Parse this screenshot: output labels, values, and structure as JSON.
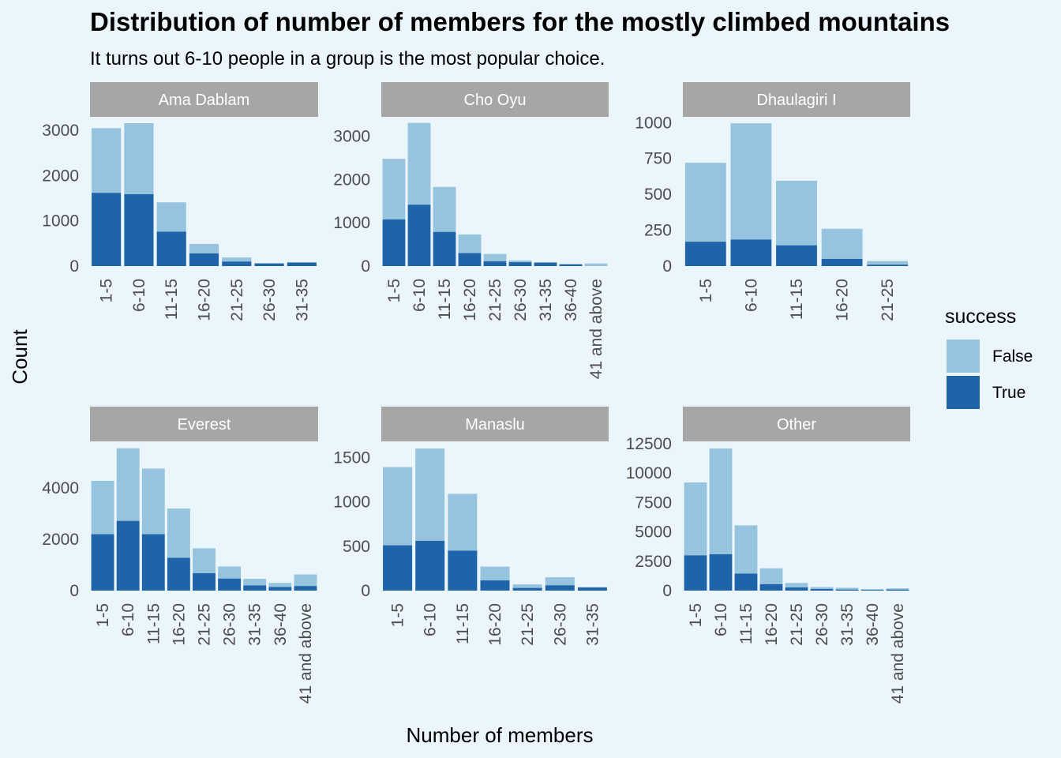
{
  "chart_data": {
    "type": "bar",
    "stacked": true,
    "title": "Distribution of number of members for the mostly climbed mountains",
    "subtitle": "It turns out 6-10 people in a group is the most popular choice.",
    "xlabel": "Number of members",
    "ylabel": "Count",
    "grid": false,
    "legend": {
      "title": "success",
      "placement": "right",
      "entries": [
        {
          "label": "False",
          "color": "#96c3dd"
        },
        {
          "label": "True",
          "color": "#1f64a8"
        }
      ]
    },
    "strip_color": "#a6a6a6",
    "facets": [
      {
        "name": "Ama Dablam",
        "categories": [
          "1-5",
          "6-10",
          "11-15",
          "16-20",
          "21-25",
          "26-30",
          "31-35"
        ],
        "true": [
          1620,
          1590,
          760,
          280,
          100,
          60,
          80
        ],
        "total": [
          3050,
          3160,
          1410,
          490,
          190,
          60,
          80
        ],
        "ylim": [
          0,
          3300
        ],
        "yticks": [
          {
            "v": 0,
            "label": "0"
          },
          {
            "v": 1000,
            "label": "1000"
          },
          {
            "v": 2000,
            "label": "2000"
          },
          {
            "v": 3000,
            "label": "3000"
          }
        ]
      },
      {
        "name": "Cho Oyu",
        "categories": [
          "1-5",
          "6-10",
          "11-15",
          "16-20",
          "21-25",
          "26-30",
          "31-35",
          "36-40",
          "41 and above"
        ],
        "true": [
          1080,
          1420,
          790,
          300,
          110,
          90,
          80,
          40,
          0
        ],
        "total": [
          2480,
          3310,
          1830,
          730,
          280,
          130,
          90,
          50,
          60
        ],
        "ylim": [
          0,
          3450
        ],
        "yticks": [
          {
            "v": 0,
            "label": "0"
          },
          {
            "v": 1000,
            "label": "1000"
          },
          {
            "v": 2000,
            "label": "2000"
          },
          {
            "v": 3000,
            "label": "3000"
          }
        ]
      },
      {
        "name": "Dhaulagiri I",
        "categories": [
          "1-5",
          "6-10",
          "11-15",
          "16-20",
          "21-25"
        ],
        "true": [
          170,
          185,
          145,
          50,
          10
        ],
        "total": [
          720,
          995,
          595,
          260,
          35
        ],
        "ylim": [
          0,
          1040
        ],
        "yticks": [
          {
            "v": 0,
            "label": "0"
          },
          {
            "v": 250,
            "label": "250"
          },
          {
            "v": 500,
            "label": "500"
          },
          {
            "v": 750,
            "label": "750"
          },
          {
            "v": 1000,
            "label": "1000"
          }
        ]
      },
      {
        "name": "Everest",
        "categories": [
          "1-5",
          "6-10",
          "11-15",
          "16-20",
          "21-25",
          "26-30",
          "31-35",
          "36-40",
          "41 and above"
        ],
        "true": [
          2200,
          2720,
          2200,
          1280,
          680,
          470,
          200,
          140,
          180
        ],
        "total": [
          4280,
          5550,
          4760,
          3200,
          1650,
          940,
          460,
          300,
          630
        ],
        "ylim": [
          0,
          5820
        ],
        "yticks": [
          {
            "v": 0,
            "label": "0"
          },
          {
            "v": 2000,
            "label": "2000"
          },
          {
            "v": 4000,
            "label": "4000"
          }
        ]
      },
      {
        "name": "Manaslu",
        "categories": [
          "1-5",
          "6-10",
          "11-15",
          "16-20",
          "21-25",
          "26-30",
          "31-35"
        ],
        "true": [
          510,
          560,
          450,
          115,
          30,
          60,
          35
        ],
        "total": [
          1390,
          1600,
          1090,
          270,
          70,
          150,
          40
        ],
        "ylim": [
          0,
          1680
        ],
        "yticks": [
          {
            "v": 0,
            "label": "0"
          },
          {
            "v": 500,
            "label": "500"
          },
          {
            "v": 1000,
            "label": "1000"
          },
          {
            "v": 1500,
            "label": "1500"
          }
        ]
      },
      {
        "name": "Other",
        "categories": [
          "1-5",
          "6-10",
          "11-15",
          "16-20",
          "21-25",
          "26-30",
          "31-35",
          "36-40",
          "41 and above"
        ],
        "true": [
          3000,
          3100,
          1450,
          550,
          270,
          140,
          90,
          60,
          90
        ],
        "total": [
          9200,
          12100,
          5550,
          1900,
          650,
          300,
          240,
          130,
          190
        ],
        "ylim": [
          0,
          12700
        ],
        "yticks": [
          {
            "v": 0,
            "label": "0"
          },
          {
            "v": 2500,
            "label": "2500"
          },
          {
            "v": 5000,
            "label": "5000"
          },
          {
            "v": 7500,
            "label": "7500"
          },
          {
            "v": 10000,
            "label": "10000"
          },
          {
            "v": 12500,
            "label": "12500"
          }
        ]
      }
    ]
  }
}
